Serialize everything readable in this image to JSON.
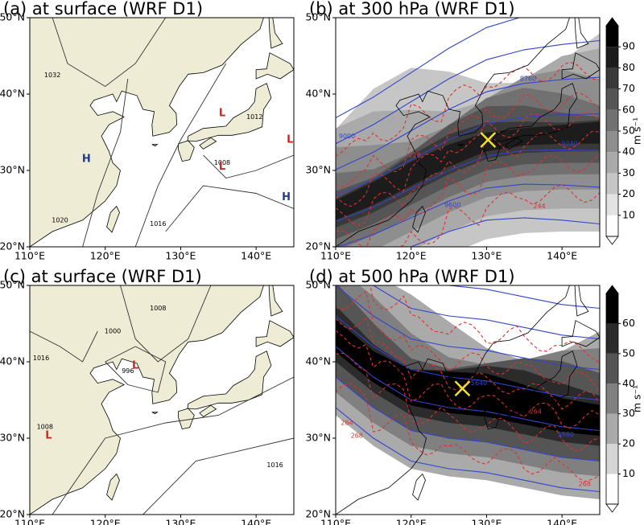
{
  "panels": [
    {
      "title": "(a) at surface (WRF D1)",
      "xticks": [
        "110°E",
        "120°E",
        "130°E",
        "140°E"
      ],
      "yticks": [
        "20°N",
        "30°N",
        "40°N",
        "50°N"
      ],
      "labels": [
        "1032",
        "1020",
        "1016",
        "1008",
        "1012",
        "H",
        "H",
        "L",
        "L",
        "L"
      ]
    },
    {
      "title": "(b) at 300 hPa (WRF D1)",
      "xticks": [
        "110°E",
        "120°E",
        "130°E",
        "140°E"
      ],
      "yticks": [
        "20°N",
        "30°N",
        "40°N",
        "50°N"
      ],
      "labels": [
        "9000",
        "9240",
        "9600",
        "8760",
        "244",
        "228"
      ]
    },
    {
      "title": "(c) at surface (WRF D1)",
      "xticks": [
        "110°E",
        "120°E",
        "130°E",
        "140°E"
      ],
      "yticks": [
        "20°N",
        "30°N",
        "40°N",
        "50°N"
      ],
      "labels": [
        "1008",
        "1000",
        "1016",
        "996",
        "1008",
        "1016",
        "L",
        "L"
      ]
    },
    {
      "title": "(d) at 500 hPa (WRF D1)",
      "xticks": [
        "110°E",
        "120°E",
        "130°E",
        "140°E"
      ],
      "yticks": [
        "20°N",
        "30°N",
        "40°N",
        "50°N"
      ],
      "labels": [
        "5640",
        "5880",
        "264",
        "268",
        "264",
        "268"
      ]
    }
  ],
  "colorbars": [
    {
      "ticks": [
        10,
        20,
        30,
        40,
        50,
        60,
        70,
        80,
        90
      ],
      "unit": "m s⁻¹"
    },
    {
      "ticks": [
        10,
        20,
        30,
        40,
        50,
        60
      ],
      "unit": "m s⁻¹"
    }
  ]
}
